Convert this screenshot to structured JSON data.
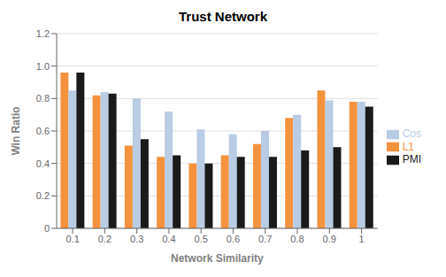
{
  "chart_data": {
    "type": "bar",
    "title": "Trust Network",
    "xlabel": "Network Similarity",
    "ylabel": "Win Ratio",
    "categories": [
      "0.1",
      "0.2",
      "0.3",
      "0.4",
      "0.5",
      "0.6",
      "0.7",
      "0.8",
      "0.9",
      "1"
    ],
    "series": [
      {
        "name": "L1",
        "color": "#f5923e",
        "values": [
          0.96,
          0.82,
          0.51,
          0.44,
          0.4,
          0.45,
          0.52,
          0.68,
          0.85,
          0.78
        ]
      },
      {
        "name": "Cos",
        "color": "#b8cce4",
        "values": [
          0.85,
          0.84,
          0.8,
          0.72,
          0.61,
          0.58,
          0.6,
          0.7,
          0.79,
          0.78
        ]
      },
      {
        "name": "PMI",
        "color": "#1a1a1a",
        "values": [
          0.96,
          0.83,
          0.55,
          0.45,
          0.4,
          0.44,
          0.44,
          0.48,
          0.5,
          0.75
        ]
      }
    ],
    "ylim": [
      0,
      1.2
    ],
    "yticks": [
      0,
      0.2,
      0.4,
      0.6,
      0.8,
      {
        "value": 1.0,
        "label": "1.0"
      },
      1.2
    ],
    "grid": true,
    "legend": "right"
  }
}
